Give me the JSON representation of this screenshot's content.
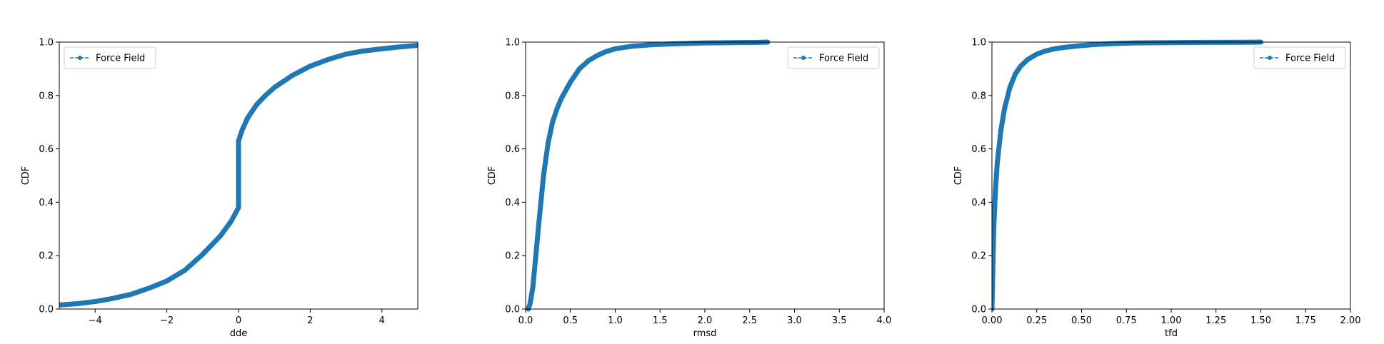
{
  "chart_data": [
    {
      "type": "line",
      "xlabel": "dde",
      "ylabel": "CDF",
      "xlim": [
        -5,
        5
      ],
      "ylim": [
        0,
        1
      ],
      "xticks": [
        -4,
        -2,
        0,
        2,
        4
      ],
      "xtick_labels": [
        "−4",
        "−2",
        "0",
        "2",
        "4"
      ],
      "yticks": [
        0,
        0.2,
        0.4,
        0.6,
        0.8,
        1.0
      ],
      "ytick_labels": [
        "0.0",
        "0.2",
        "0.4",
        "0.6",
        "0.8",
        "1.0"
      ],
      "legend": {
        "location": "upper left",
        "entries": [
          "Force Field"
        ]
      },
      "grid": false,
      "series": [
        {
          "name": "Force Field",
          "color": "#1f77b4",
          "style": "dashed line with dot markers",
          "x": [
            -5,
            -4.5,
            -4,
            -3.5,
            -3,
            -2.5,
            -2,
            -1.5,
            -1,
            -0.5,
            -0.2,
            0,
            0,
            0.1,
            0.25,
            0.5,
            0.75,
            1,
            1.5,
            2,
            2.5,
            3,
            3.5,
            4,
            4.5,
            5
          ],
          "y": [
            0.015,
            0.02,
            0.028,
            0.04,
            0.055,
            0.078,
            0.105,
            0.145,
            0.205,
            0.275,
            0.33,
            0.38,
            0.63,
            0.67,
            0.715,
            0.765,
            0.8,
            0.83,
            0.875,
            0.91,
            0.935,
            0.955,
            0.967,
            0.975,
            0.982,
            0.988
          ]
        }
      ]
    },
    {
      "type": "line",
      "xlabel": "rmsd",
      "ylabel": "CDF",
      "xlim": [
        0,
        4
      ],
      "ylim": [
        0,
        1
      ],
      "xticks": [
        0,
        0.5,
        1,
        1.5,
        2,
        2.5,
        3,
        3.5,
        4
      ],
      "xtick_labels": [
        "0.0",
        "0.5",
        "1.0",
        "1.5",
        "2.0",
        "2.5",
        "3.0",
        "3.5",
        "4.0"
      ],
      "yticks": [
        0,
        0.2,
        0.4,
        0.6,
        0.8,
        1.0
      ],
      "ytick_labels": [
        "0.0",
        "0.2",
        "0.4",
        "0.6",
        "0.8",
        "1.0"
      ],
      "legend": {
        "location": "upper right",
        "entries": [
          "Force Field"
        ]
      },
      "grid": false,
      "series": [
        {
          "name": "Force Field",
          "color": "#1f77b4",
          "style": "dashed line with dot markers",
          "x": [
            0.03,
            0.05,
            0.08,
            0.1,
            0.15,
            0.2,
            0.25,
            0.3,
            0.35,
            0.4,
            0.5,
            0.6,
            0.7,
            0.8,
            0.9,
            1.0,
            1.2,
            1.4,
            1.6,
            1.8,
            2.0,
            2.3,
            2.6,
            2.7
          ],
          "y": [
            0.0,
            0.02,
            0.08,
            0.15,
            0.33,
            0.5,
            0.62,
            0.7,
            0.75,
            0.79,
            0.85,
            0.9,
            0.93,
            0.95,
            0.965,
            0.975,
            0.985,
            0.99,
            0.993,
            0.995,
            0.997,
            0.998,
            0.999,
            1.0
          ]
        }
      ]
    },
    {
      "type": "line",
      "xlabel": "tfd",
      "ylabel": "CDF",
      "xlim": [
        0,
        2
      ],
      "ylim": [
        0,
        1
      ],
      "xticks": [
        0,
        0.25,
        0.5,
        0.75,
        1,
        1.25,
        1.5,
        1.75,
        2
      ],
      "xtick_labels": [
        "0.00",
        "0.25",
        "0.50",
        "0.75",
        "1.00",
        "1.25",
        "1.50",
        "1.75",
        "2.00"
      ],
      "yticks": [
        0,
        0.2,
        0.4,
        0.6,
        0.8,
        1.0
      ],
      "ytick_labels": [
        "0.0",
        "0.2",
        "0.4",
        "0.6",
        "0.8",
        "1.0"
      ],
      "legend": {
        "location": "upper right",
        "entries": [
          "Force Field"
        ]
      },
      "grid": false,
      "series": [
        {
          "name": "Force Field",
          "color": "#1f77b4",
          "style": "dashed line with dot markers",
          "x": [
            0.0,
            0.005,
            0.01,
            0.02,
            0.03,
            0.05,
            0.07,
            0.1,
            0.13,
            0.16,
            0.2,
            0.25,
            0.3,
            0.35,
            0.4,
            0.5,
            0.6,
            0.7,
            0.8,
            1.0,
            1.2,
            1.4,
            1.5
          ],
          "y": [
            0.0,
            0.15,
            0.3,
            0.45,
            0.55,
            0.67,
            0.75,
            0.83,
            0.88,
            0.91,
            0.935,
            0.955,
            0.967,
            0.975,
            0.98,
            0.987,
            0.992,
            0.995,
            0.997,
            0.998,
            0.999,
            0.9995,
            1.0
          ]
        }
      ]
    }
  ]
}
